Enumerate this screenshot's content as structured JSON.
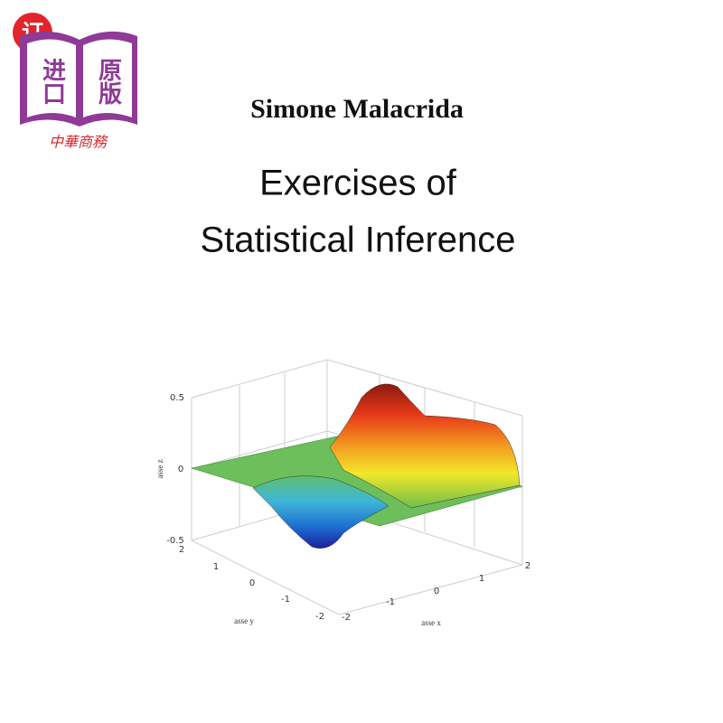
{
  "badge": {
    "order": "订",
    "import": "进口",
    "original": "原版",
    "publisher": "中華商務"
  },
  "cover": {
    "author": "Simone Malacrida",
    "title_line1": "Exercises of",
    "title_line2": "Statistical Inference"
  },
  "plot": {
    "z_ticks": [
      "0.5",
      "0",
      "-0.5"
    ],
    "y_ticks": [
      "2",
      "1",
      "0",
      "-1",
      "-2"
    ],
    "x_ticks": [
      "-2",
      "-1",
      "0",
      "1",
      "2"
    ],
    "x_label": "asse x",
    "y_label": "asse y",
    "z_label": "asse z"
  }
}
